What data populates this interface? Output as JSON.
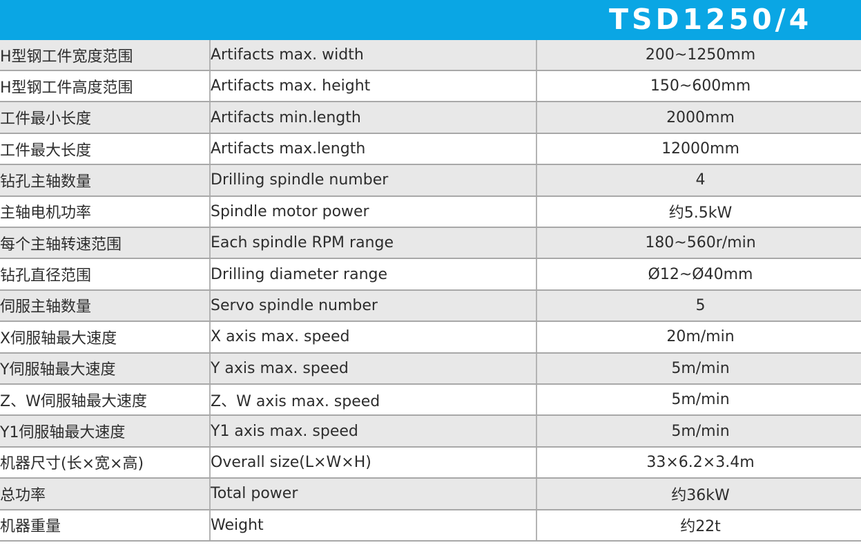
{
  "header": {
    "title": "TSD1250/4",
    "bg_color": "#0aa6e4",
    "title_color": "#ffffff"
  },
  "table": {
    "columns": [
      "chinese-spec-name",
      "english-spec-name",
      "spec-value"
    ],
    "zebra": {
      "odd_row_bg": "#e8e8e8",
      "even_row_bg": "#ffffff",
      "border_color": "#a8a8a8"
    },
    "rows": [
      {
        "cn": "H型钢工件宽度范围",
        "en": "Artifacts max. width",
        "value": "200~1250mm"
      },
      {
        "cn": "H型钢工件高度范围",
        "en": "Artifacts max. height",
        "value": "150~600mm"
      },
      {
        "cn": "工件最小长度",
        "en": "Artifacts min.length",
        "value": "2000mm"
      },
      {
        "cn": "工件最大长度",
        "en": "Artifacts max.length",
        "value": "12000mm"
      },
      {
        "cn": "钻孔主轴数量",
        "en": "Drilling spindle number",
        "value": "4"
      },
      {
        "cn": "主轴电机功率",
        "en": "Spindle motor power",
        "value": "约5.5kW"
      },
      {
        "cn": "每个主轴转速范围",
        "en": "Each spindle RPM range",
        "value": "180~560r/min"
      },
      {
        "cn": "钻孔直径范围",
        "en": "Drilling diameter range",
        "value": "Ø12~Ø40mm"
      },
      {
        "cn": "伺服主轴数量",
        "en": "Servo spindle number",
        "value": "5"
      },
      {
        "cn": "X伺服轴最大速度",
        "en": "X axis max. speed",
        "value": "20m/min"
      },
      {
        "cn": "Y伺服轴最大速度",
        "en": "Y axis max. speed",
        "value": "5m/min"
      },
      {
        "cn": "Z、W伺服轴最大速度",
        "en": "Z、W axis max. speed",
        "value": "5m/min"
      },
      {
        "cn": "Y1伺服轴最大速度",
        "en": "Y1 axis max. speed",
        "value": "5m/min"
      },
      {
        "cn": "机器尺寸(长×宽×高)",
        "en": "Overall size(L×W×H)",
        "value": "33×6.2×3.4m"
      },
      {
        "cn": "总功率",
        "en": "Total power",
        "value": "约36kW"
      },
      {
        "cn": "机器重量",
        "en": "Weight",
        "value": "约22t"
      }
    ]
  }
}
